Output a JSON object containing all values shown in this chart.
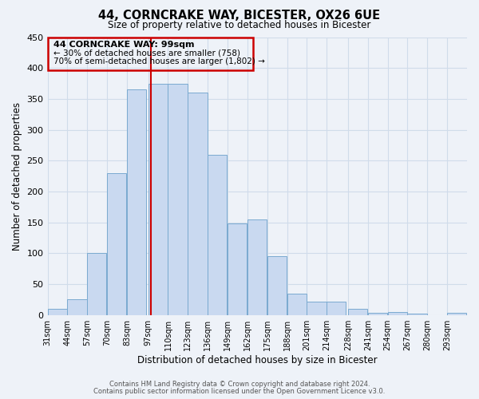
{
  "title": "44, CORNCRAKE WAY, BICESTER, OX26 6UE",
  "subtitle": "Size of property relative to detached houses in Bicester",
  "xlabel": "Distribution of detached houses by size in Bicester",
  "ylabel": "Number of detached properties",
  "bar_color": "#c9d9f0",
  "bar_edge_color": "#7aaad0",
  "grid_color": "#d0dcea",
  "background_color": "#eef2f8",
  "annotation_box_color": "#cc0000",
  "red_line_color": "#cc0000",
  "bins": [
    31,
    44,
    57,
    70,
    83,
    97,
    110,
    123,
    136,
    149,
    162,
    175,
    188,
    201,
    214,
    228,
    241,
    254,
    267,
    280,
    293
  ],
  "counts": [
    10,
    25,
    100,
    230,
    365,
    375,
    375,
    360,
    260,
    148,
    155,
    95,
    35,
    22,
    22,
    10,
    4,
    5,
    2,
    0,
    3
  ],
  "red_line_x": 99,
  "annotation_text_line1": "44 CORNCRAKE WAY: 99sqm",
  "annotation_text_line2": "← 30% of detached houses are smaller (758)",
  "annotation_text_line3": "70% of semi-detached houses are larger (1,802) →",
  "ylim": [
    0,
    450
  ],
  "yticks": [
    0,
    50,
    100,
    150,
    200,
    250,
    300,
    350,
    400,
    450
  ],
  "footer_line1": "Contains HM Land Registry data © Crown copyright and database right 2024.",
  "footer_line2": "Contains public sector information licensed under the Open Government Licence v3.0."
}
